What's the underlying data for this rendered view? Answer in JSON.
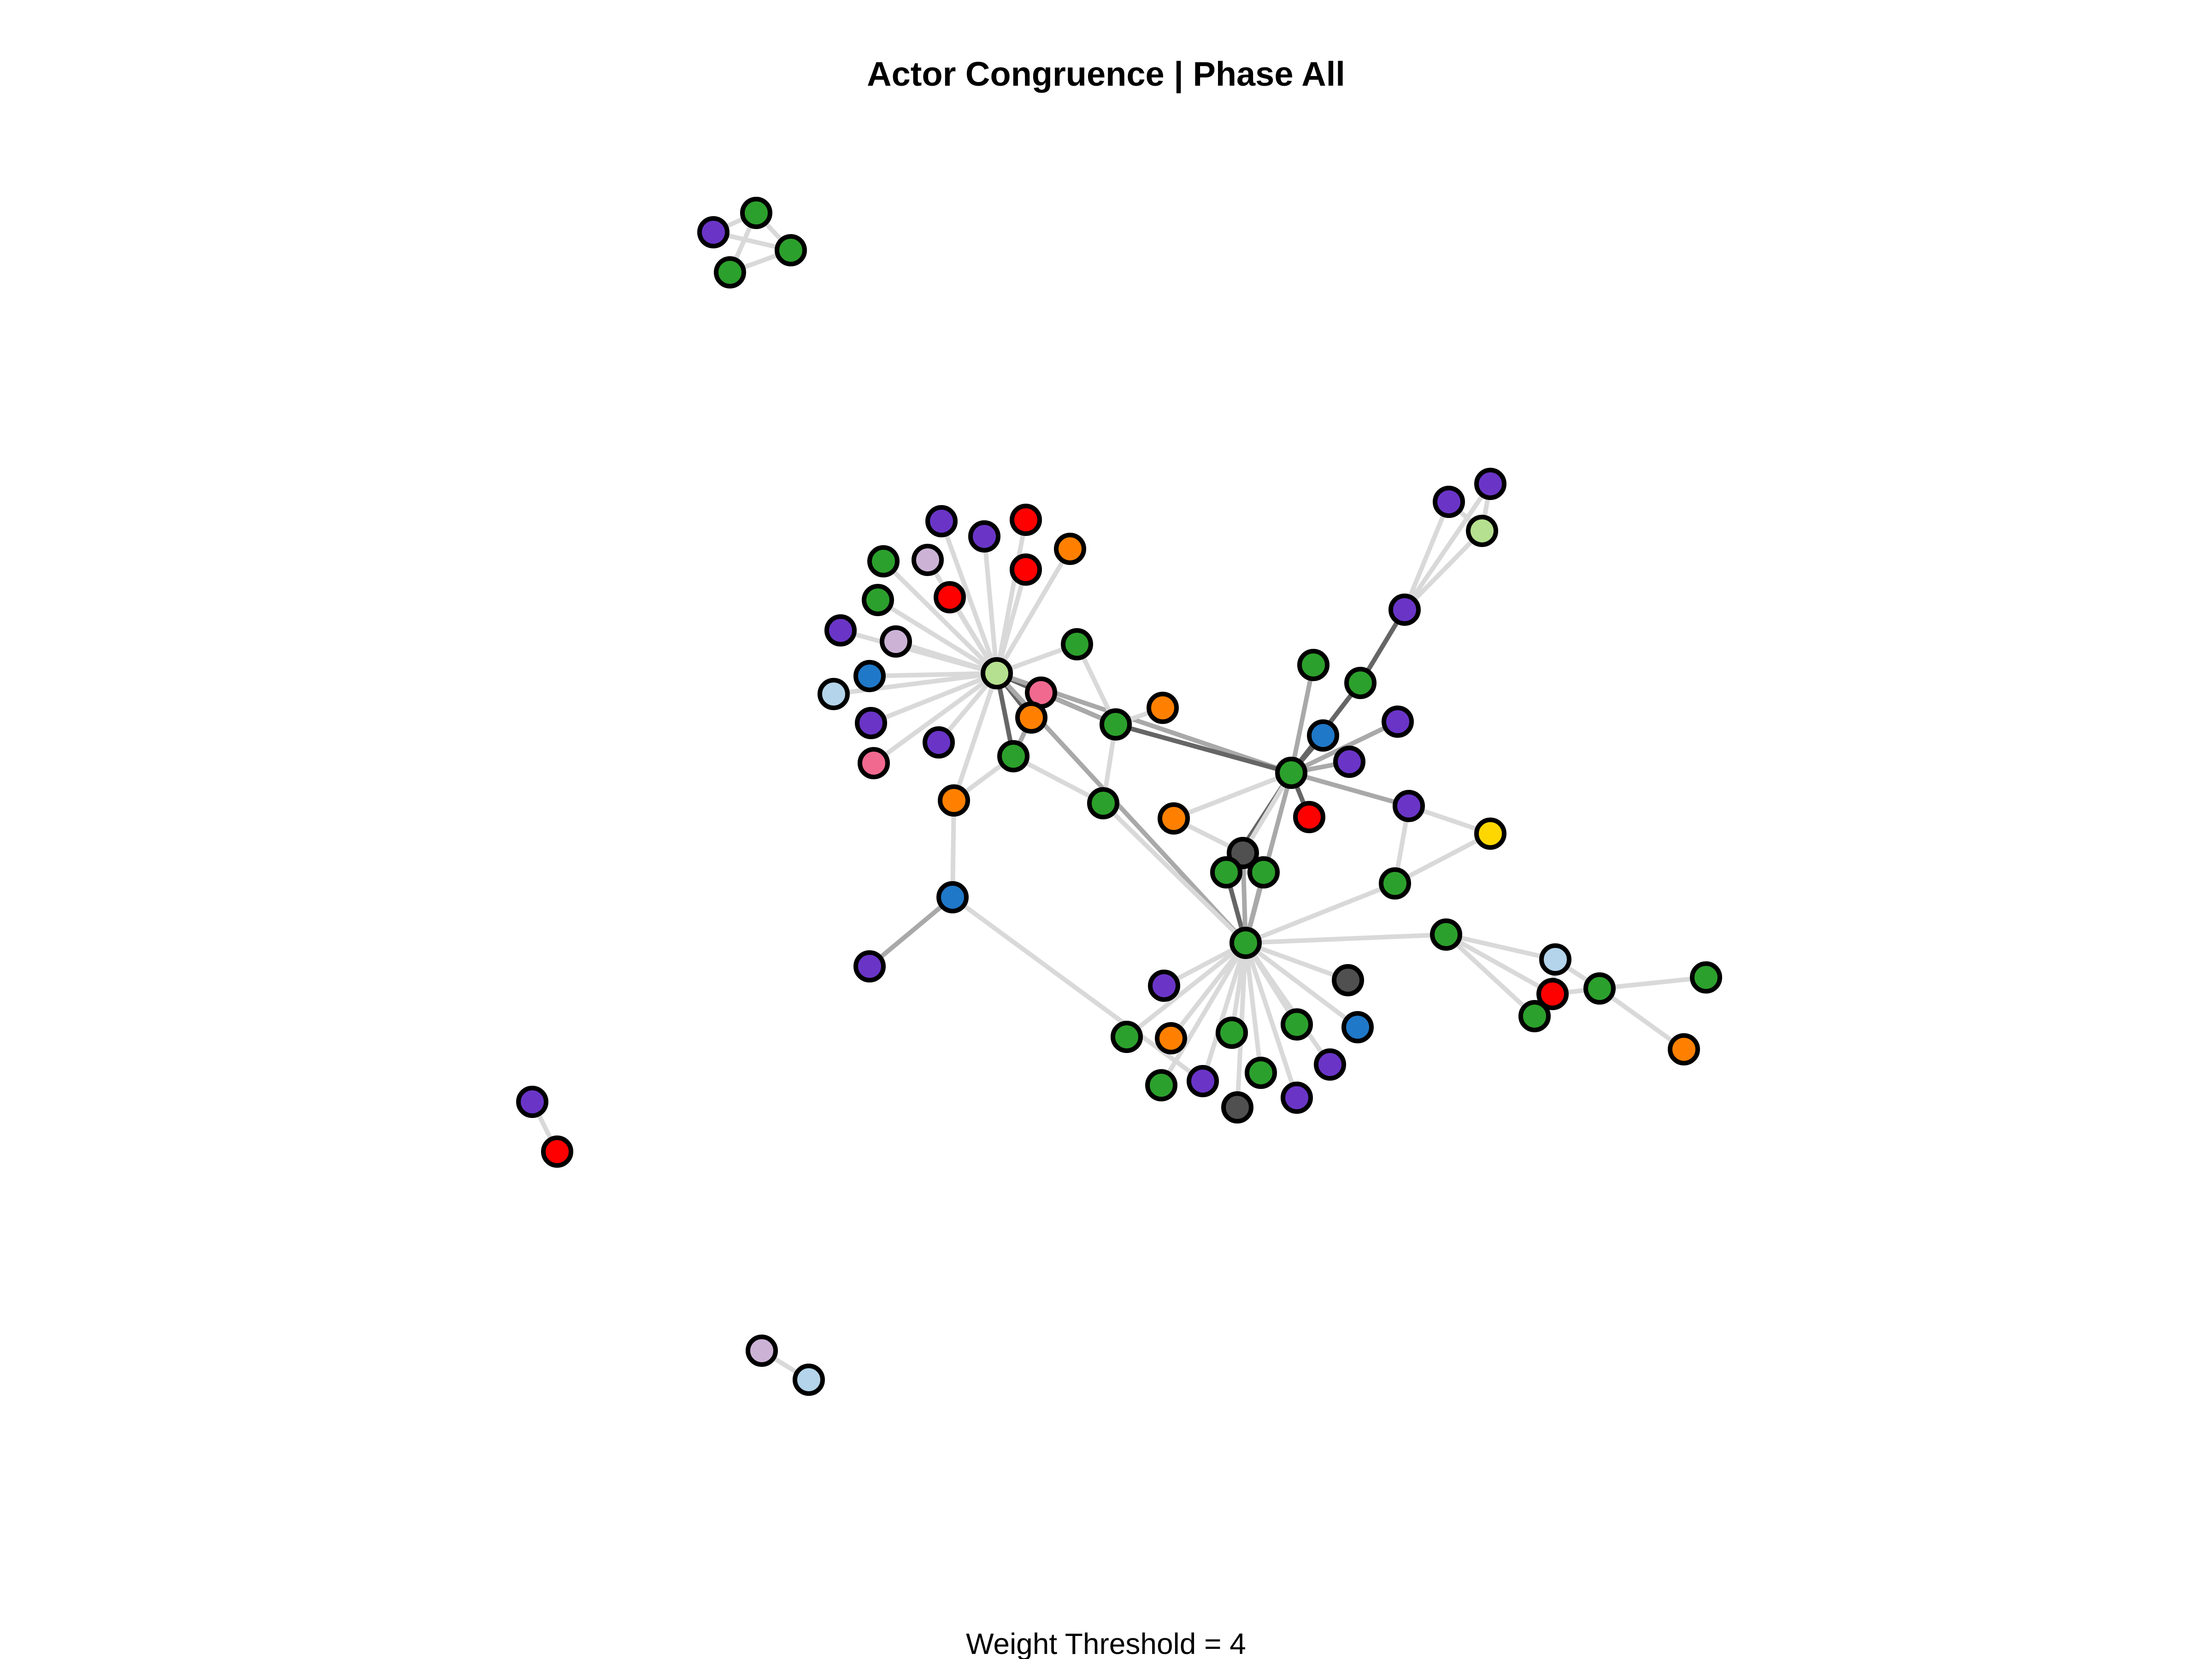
{
  "title": "Actor Congruence | Phase All",
  "footer": "Weight Threshold = 4",
  "colors": {
    "purple": "#6a35c7",
    "green": "#2ca02c",
    "red": "#ff0000",
    "orange": "#ff8000",
    "lightgreen": "#b5e08f",
    "pink": "#f2698f",
    "blue": "#1f78c8",
    "lightblue": "#b3d4ea",
    "lavender": "#ccb3d6",
    "gray": "#505050",
    "yellow": "#ffd700"
  },
  "nodes": [
    {
      "id": "a1",
      "c": "purple"
    },
    {
      "id": "a2",
      "c": "green"
    },
    {
      "id": "a3",
      "c": "green"
    },
    {
      "id": "a4",
      "c": "green"
    },
    {
      "id": "b1",
      "c": "purple"
    },
    {
      "id": "b2",
      "c": "red"
    },
    {
      "id": "c1",
      "c": "lavender"
    },
    {
      "id": "c2",
      "c": "lightblue"
    },
    {
      "id": "h1",
      "c": "lightgreen"
    },
    {
      "id": "p1",
      "c": "purple"
    },
    {
      "id": "p2",
      "c": "purple"
    },
    {
      "id": "p3",
      "c": "red"
    },
    {
      "id": "p4",
      "c": "green"
    },
    {
      "id": "p5",
      "c": "lavender"
    },
    {
      "id": "p6",
      "c": "red"
    },
    {
      "id": "p7",
      "c": "orange"
    },
    {
      "id": "p8",
      "c": "green"
    },
    {
      "id": "p9",
      "c": "red"
    },
    {
      "id": "p10",
      "c": "purple"
    },
    {
      "id": "p11",
      "c": "lavender"
    },
    {
      "id": "p12",
      "c": "blue"
    },
    {
      "id": "p13",
      "c": "lightblue"
    },
    {
      "id": "p14",
      "c": "purple"
    },
    {
      "id": "p15",
      "c": "pink"
    },
    {
      "id": "p16",
      "c": "purple"
    },
    {
      "id": "p17",
      "c": "green"
    },
    {
      "id": "h2",
      "c": "pink"
    },
    {
      "id": "h3",
      "c": "orange"
    },
    {
      "id": "h4",
      "c": "green"
    },
    {
      "id": "h5",
      "c": "orange"
    },
    {
      "id": "h6",
      "c": "blue"
    },
    {
      "id": "h7",
      "c": "purple"
    },
    {
      "id": "g1",
      "c": "green"
    },
    {
      "id": "g2",
      "c": "orange"
    },
    {
      "id": "g3",
      "c": "green"
    },
    {
      "id": "g4",
      "c": "orange"
    },
    {
      "id": "hub",
      "c": "green"
    },
    {
      "id": "x1",
      "c": "green"
    },
    {
      "id": "x2",
      "c": "blue"
    },
    {
      "id": "x3",
      "c": "purple"
    },
    {
      "id": "x4",
      "c": "red"
    },
    {
      "id": "x5",
      "c": "purple"
    },
    {
      "id": "x6",
      "c": "green"
    },
    {
      "id": "q1",
      "c": "purple"
    },
    {
      "id": "q2",
      "c": "purple"
    },
    {
      "id": "q3",
      "c": "purple"
    },
    {
      "id": "q4",
      "c": "lightgreen"
    },
    {
      "id": "r1",
      "c": "purple"
    },
    {
      "id": "r2",
      "c": "yellow"
    },
    {
      "id": "r3",
      "c": "green"
    },
    {
      "id": "m0",
      "c": "gray"
    },
    {
      "id": "m1",
      "c": "green"
    },
    {
      "id": "m2",
      "c": "green"
    },
    {
      "id": "s",
      "c": "green"
    },
    {
      "id": "s1",
      "c": "purple"
    },
    {
      "id": "s2",
      "c": "gray"
    },
    {
      "id": "s3",
      "c": "green"
    },
    {
      "id": "s4",
      "c": "orange"
    },
    {
      "id": "s5",
      "c": "green"
    },
    {
      "id": "s6",
      "c": "green"
    },
    {
      "id": "s7",
      "c": "blue"
    },
    {
      "id": "s8",
      "c": "green"
    },
    {
      "id": "s9",
      "c": "purple"
    },
    {
      "id": "s10",
      "c": "green"
    },
    {
      "id": "s11",
      "c": "purple"
    },
    {
      "id": "s12",
      "c": "gray"
    },
    {
      "id": "s13",
      "c": "purple"
    },
    {
      "id": "t0",
      "c": "green"
    },
    {
      "id": "t1",
      "c": "lightblue"
    },
    {
      "id": "t2",
      "c": "red"
    },
    {
      "id": "t3",
      "c": "green"
    },
    {
      "id": "t4",
      "c": "green"
    },
    {
      "id": "t5",
      "c": "green"
    },
    {
      "id": "t6",
      "c": "orange"
    }
  ],
  "edges": [
    [
      "a1",
      "a2",
      1
    ],
    [
      "a1",
      "a3",
      1
    ],
    [
      "a2",
      "a3",
      1
    ],
    [
      "a3",
      "a4",
      1
    ],
    [
      "a2",
      "a4",
      1
    ],
    [
      "b1",
      "b2",
      1
    ],
    [
      "c1",
      "c2",
      1
    ],
    [
      "h1",
      "p1",
      1
    ],
    [
      "h1",
      "p2",
      1
    ],
    [
      "h1",
      "p3",
      1
    ],
    [
      "h1",
      "p4",
      1
    ],
    [
      "h1",
      "p5",
      1
    ],
    [
      "h1",
      "p6",
      1
    ],
    [
      "h1",
      "p7",
      1
    ],
    [
      "h1",
      "p8",
      1
    ],
    [
      "h1",
      "p9",
      1
    ],
    [
      "h1",
      "p10",
      1
    ],
    [
      "h1",
      "p11",
      1
    ],
    [
      "h1",
      "p12",
      1
    ],
    [
      "h1",
      "p13",
      1
    ],
    [
      "h1",
      "p14",
      1
    ],
    [
      "h1",
      "p15",
      1
    ],
    [
      "h1",
      "p16",
      1
    ],
    [
      "h1",
      "p17",
      1
    ],
    [
      "h1",
      "h2",
      3
    ],
    [
      "h1",
      "h3",
      3
    ],
    [
      "h1",
      "h4",
      3
    ],
    [
      "h1",
      "h5",
      1
    ],
    [
      "h1",
      "g1",
      3
    ],
    [
      "h1",
      "hub",
      2
    ],
    [
      "h1",
      "s",
      2
    ],
    [
      "h2",
      "h3",
      2
    ],
    [
      "h2",
      "g1",
      2
    ],
    [
      "h3",
      "h4",
      2
    ],
    [
      "h4",
      "h5",
      1
    ],
    [
      "h5",
      "h6",
      1
    ],
    [
      "h6",
      "h7",
      2
    ],
    [
      "h6",
      "s9",
      1
    ],
    [
      "p17",
      "g1",
      1
    ],
    [
      "g1",
      "g2",
      1
    ],
    [
      "g1",
      "hub",
      3
    ],
    [
      "g1",
      "g3",
      1
    ],
    [
      "h4",
      "g3",
      1
    ],
    [
      "g3",
      "s",
      1
    ],
    [
      "hub",
      "x1",
      2
    ],
    [
      "hub",
      "x2",
      3
    ],
    [
      "hub",
      "x3",
      2
    ],
    [
      "hub",
      "x4",
      3
    ],
    [
      "hub",
      "x5",
      2
    ],
    [
      "hub",
      "x6",
      3
    ],
    [
      "hub",
      "r1",
      2
    ],
    [
      "hub",
      "g4",
      1
    ],
    [
      "hub",
      "m1",
      3
    ],
    [
      "hub",
      "s",
      2
    ],
    [
      "hub",
      "m0",
      1
    ],
    [
      "x6",
      "q1",
      3
    ],
    [
      "q1",
      "q2",
      1
    ],
    [
      "q1",
      "q3",
      1
    ],
    [
      "q1",
      "q4",
      1
    ],
    [
      "q2",
      "q4",
      1
    ],
    [
      "q3",
      "q4",
      1
    ],
    [
      "r1",
      "r2",
      1
    ],
    [
      "r1",
      "r3",
      1
    ],
    [
      "r2",
      "r3",
      1
    ],
    [
      "r3",
      "s",
      1
    ],
    [
      "m0",
      "m1",
      2
    ],
    [
      "m0",
      "m2",
      2
    ],
    [
      "m1",
      "m2",
      1
    ],
    [
      "m1",
      "s",
      3
    ],
    [
      "m2",
      "s",
      2
    ],
    [
      "m0",
      "s",
      2
    ],
    [
      "g4",
      "m0",
      1
    ],
    [
      "s",
      "s1",
      1
    ],
    [
      "s",
      "s2",
      1
    ],
    [
      "s",
      "s3",
      1
    ],
    [
      "s",
      "s4",
      1
    ],
    [
      "s",
      "s5",
      1
    ],
    [
      "s",
      "s6",
      1
    ],
    [
      "s",
      "s7",
      1
    ],
    [
      "s",
      "s8",
      1
    ],
    [
      "s",
      "s9",
      1
    ],
    [
      "s",
      "s10",
      1
    ],
    [
      "s",
      "s11",
      1
    ],
    [
      "s",
      "s12",
      1
    ],
    [
      "s",
      "s13",
      1
    ],
    [
      "s",
      "t0",
      1
    ],
    [
      "t0",
      "t1",
      1
    ],
    [
      "t0",
      "t2",
      1
    ],
    [
      "t0",
      "t3",
      1
    ],
    [
      "t1",
      "t2",
      1
    ],
    [
      "t2",
      "t4",
      1
    ],
    [
      "t4",
      "t5",
      1
    ],
    [
      "t4",
      "t6",
      1
    ],
    [
      "t1",
      "t4",
      1
    ]
  ]
}
